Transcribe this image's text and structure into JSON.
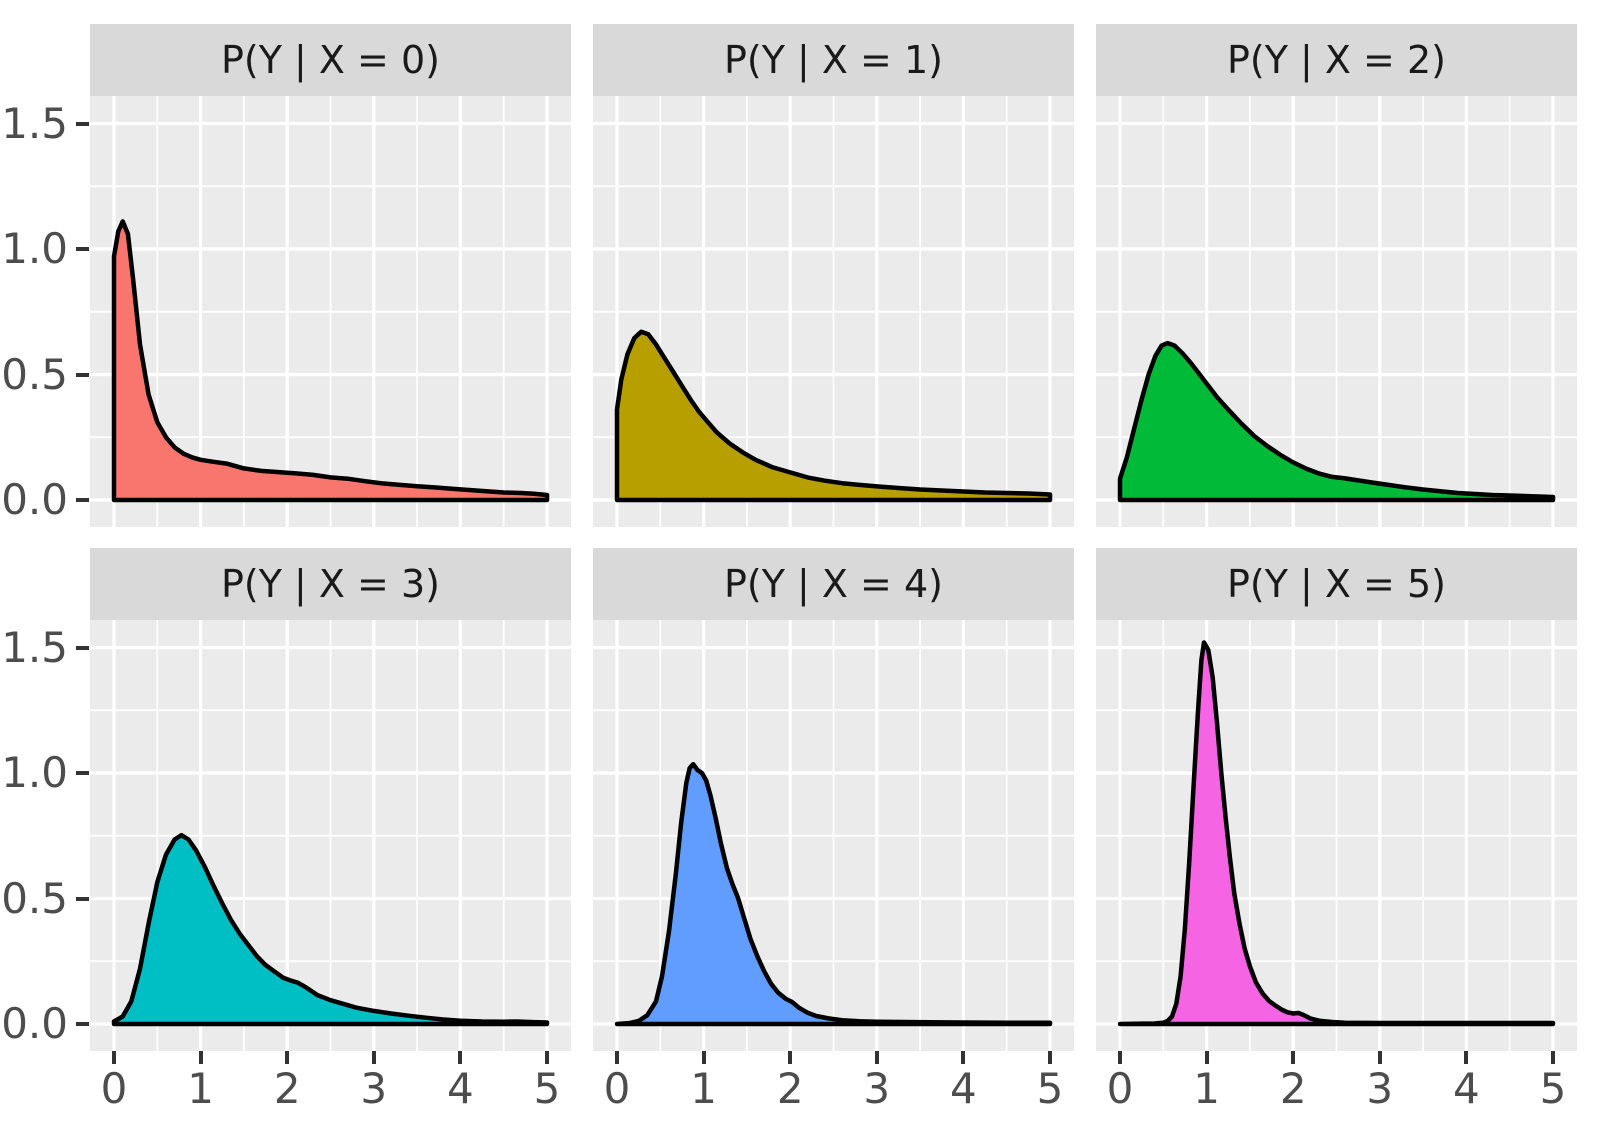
{
  "chart_data": {
    "type": "area",
    "subtype": "faceted-density-plot",
    "facet_layout": {
      "rows": 2,
      "cols": 3
    },
    "xlabel": "",
    "ylabel": "",
    "x_ticks": {
      "labels": [
        "0",
        "1",
        "2",
        "3",
        "4",
        "5"
      ],
      "values": [
        0,
        1,
        2,
        3,
        4,
        5
      ]
    },
    "y_ticks": {
      "labels": [
        "1.5",
        "1.0",
        "0.5",
        "0.0"
      ],
      "values": [
        1.5,
        1.0,
        0.5,
        0.0
      ]
    },
    "xlim_display": [
      -0.25,
      5.25
    ],
    "ylim_display": [
      -0.11,
      1.61
    ],
    "grid": {
      "major_x": [
        0,
        1,
        2,
        3,
        4,
        5
      ],
      "minor_x": [
        0.5,
        1.5,
        2.5,
        3.5,
        4.5
      ],
      "major_y": [
        0,
        0.5,
        1.0,
        1.5
      ],
      "minor_y": [
        0.25,
        0.75,
        1.25
      ]
    },
    "theme": {
      "panel_bg": "#EBEBEB",
      "strip_bg": "#D9D9D9",
      "grid_color": "#FFFFFF",
      "axis_text_color": "#4D4D4D",
      "strip_text_color": "#1A1A1A",
      "outline_color": "#000000"
    },
    "facets": [
      {
        "title": "P(Y | X = 0)",
        "fill": "#F8766D",
        "peak": {
          "x": 0.12,
          "y": 1.1
        },
        "points": [
          [
            0,
            0
          ],
          [
            0,
            0.97
          ],
          [
            0.05,
            1.07
          ],
          [
            0.1,
            1.11
          ],
          [
            0.16,
            1.06
          ],
          [
            0.22,
            0.88
          ],
          [
            0.3,
            0.62
          ],
          [
            0.4,
            0.42
          ],
          [
            0.5,
            0.31
          ],
          [
            0.6,
            0.25
          ],
          [
            0.7,
            0.21
          ],
          [
            0.8,
            0.185
          ],
          [
            0.9,
            0.17
          ],
          [
            1.0,
            0.16
          ],
          [
            1.15,
            0.152
          ],
          [
            1.3,
            0.145
          ],
          [
            1.5,
            0.126
          ],
          [
            1.7,
            0.116
          ],
          [
            1.9,
            0.111
          ],
          [
            2.1,
            0.106
          ],
          [
            2.3,
            0.1
          ],
          [
            2.5,
            0.09
          ],
          [
            2.7,
            0.085
          ],
          [
            2.9,
            0.075
          ],
          [
            3.1,
            0.066
          ],
          [
            3.3,
            0.06
          ],
          [
            3.5,
            0.055
          ],
          [
            3.7,
            0.05
          ],
          [
            3.9,
            0.045
          ],
          [
            4.1,
            0.04
          ],
          [
            4.3,
            0.035
          ],
          [
            4.5,
            0.03
          ],
          [
            4.7,
            0.028
          ],
          [
            4.85,
            0.025
          ],
          [
            5,
            0.02
          ],
          [
            5,
            0
          ]
        ]
      },
      {
        "title": "P(Y | X = 1)",
        "fill": "#B79F00",
        "peak": {
          "x": 0.3,
          "y": 0.67
        },
        "points": [
          [
            0,
            0
          ],
          [
            0,
            0.36
          ],
          [
            0.05,
            0.48
          ],
          [
            0.12,
            0.58
          ],
          [
            0.2,
            0.645
          ],
          [
            0.28,
            0.67
          ],
          [
            0.36,
            0.66
          ],
          [
            0.45,
            0.62
          ],
          [
            0.55,
            0.565
          ],
          [
            0.65,
            0.51
          ],
          [
            0.75,
            0.455
          ],
          [
            0.85,
            0.4
          ],
          [
            0.95,
            0.35
          ],
          [
            1.05,
            0.31
          ],
          [
            1.15,
            0.27
          ],
          [
            1.3,
            0.225
          ],
          [
            1.45,
            0.19
          ],
          [
            1.6,
            0.16
          ],
          [
            1.8,
            0.13
          ],
          [
            2.0,
            0.11
          ],
          [
            2.2,
            0.09
          ],
          [
            2.4,
            0.077
          ],
          [
            2.6,
            0.067
          ],
          [
            2.8,
            0.06
          ],
          [
            3.0,
            0.054
          ],
          [
            3.25,
            0.048
          ],
          [
            3.5,
            0.042
          ],
          [
            3.75,
            0.038
          ],
          [
            4.0,
            0.034
          ],
          [
            4.25,
            0.03
          ],
          [
            4.5,
            0.028
          ],
          [
            4.75,
            0.026
          ],
          [
            5,
            0.022
          ],
          [
            5,
            0
          ]
        ]
      },
      {
        "title": "P(Y | X = 2)",
        "fill": "#00BA38",
        "peak": {
          "x": 0.55,
          "y": 0.62
        },
        "points": [
          [
            0,
            0
          ],
          [
            0,
            0.085
          ],
          [
            0.08,
            0.17
          ],
          [
            0.16,
            0.28
          ],
          [
            0.25,
            0.4
          ],
          [
            0.33,
            0.5
          ],
          [
            0.41,
            0.575
          ],
          [
            0.48,
            0.615
          ],
          [
            0.55,
            0.625
          ],
          [
            0.63,
            0.615
          ],
          [
            0.72,
            0.585
          ],
          [
            0.82,
            0.545
          ],
          [
            0.92,
            0.5
          ],
          [
            1.02,
            0.455
          ],
          [
            1.12,
            0.41
          ],
          [
            1.25,
            0.36
          ],
          [
            1.4,
            0.305
          ],
          [
            1.55,
            0.255
          ],
          [
            1.7,
            0.215
          ],
          [
            1.85,
            0.18
          ],
          [
            2.0,
            0.15
          ],
          [
            2.15,
            0.125
          ],
          [
            2.3,
            0.105
          ],
          [
            2.45,
            0.092
          ],
          [
            2.6,
            0.086
          ],
          [
            2.75,
            0.078
          ],
          [
            2.9,
            0.07
          ],
          [
            3.1,
            0.06
          ],
          [
            3.3,
            0.05
          ],
          [
            3.5,
            0.042
          ],
          [
            3.7,
            0.035
          ],
          [
            3.9,
            0.028
          ],
          [
            4.1,
            0.024
          ],
          [
            4.3,
            0.02
          ],
          [
            4.5,
            0.018
          ],
          [
            4.75,
            0.015
          ],
          [
            5,
            0.012
          ],
          [
            5,
            0
          ]
        ]
      },
      {
        "title": "P(Y | X = 3)",
        "fill": "#00BFC4",
        "peak": {
          "x": 0.78,
          "y": 0.75
        },
        "points": [
          [
            0,
            0
          ],
          [
            0,
            0.01
          ],
          [
            0.1,
            0.03
          ],
          [
            0.2,
            0.09
          ],
          [
            0.3,
            0.22
          ],
          [
            0.4,
            0.4
          ],
          [
            0.5,
            0.565
          ],
          [
            0.6,
            0.675
          ],
          [
            0.7,
            0.735
          ],
          [
            0.78,
            0.752
          ],
          [
            0.86,
            0.735
          ],
          [
            0.95,
            0.69
          ],
          [
            1.05,
            0.625
          ],
          [
            1.15,
            0.55
          ],
          [
            1.25,
            0.48
          ],
          [
            1.35,
            0.415
          ],
          [
            1.45,
            0.36
          ],
          [
            1.55,
            0.315
          ],
          [
            1.65,
            0.27
          ],
          [
            1.75,
            0.235
          ],
          [
            1.85,
            0.21
          ],
          [
            1.95,
            0.185
          ],
          [
            2.05,
            0.172
          ],
          [
            2.12,
            0.165
          ],
          [
            2.22,
            0.145
          ],
          [
            2.35,
            0.115
          ],
          [
            2.5,
            0.095
          ],
          [
            2.65,
            0.08
          ],
          [
            2.8,
            0.065
          ],
          [
            3.0,
            0.052
          ],
          [
            3.2,
            0.042
          ],
          [
            3.4,
            0.033
          ],
          [
            3.6,
            0.025
          ],
          [
            3.8,
            0.018
          ],
          [
            4.0,
            0.013
          ],
          [
            4.25,
            0.01
          ],
          [
            4.5,
            0.009
          ],
          [
            4.65,
            0.01
          ],
          [
            4.8,
            0.008
          ],
          [
            5,
            0.006
          ],
          [
            5,
            0
          ]
        ]
      },
      {
        "title": "P(Y | X = 4)",
        "fill": "#619CFF",
        "peak": {
          "x": 0.87,
          "y": 1.03
        },
        "points": [
          [
            0,
            0
          ],
          [
            0.15,
            0.004
          ],
          [
            0.25,
            0.012
          ],
          [
            0.35,
            0.035
          ],
          [
            0.45,
            0.09
          ],
          [
            0.52,
            0.19
          ],
          [
            0.6,
            0.37
          ],
          [
            0.68,
            0.6
          ],
          [
            0.74,
            0.8
          ],
          [
            0.8,
            0.96
          ],
          [
            0.84,
            1.02
          ],
          [
            0.88,
            1.035
          ],
          [
            0.93,
            1.012
          ],
          [
            0.98,
            1.0
          ],
          [
            1.03,
            0.97
          ],
          [
            1.08,
            0.91
          ],
          [
            1.14,
            0.82
          ],
          [
            1.2,
            0.72
          ],
          [
            1.27,
            0.62
          ],
          [
            1.33,
            0.56
          ],
          [
            1.4,
            0.5
          ],
          [
            1.47,
            0.42
          ],
          [
            1.54,
            0.34
          ],
          [
            1.62,
            0.27
          ],
          [
            1.7,
            0.21
          ],
          [
            1.78,
            0.16
          ],
          [
            1.86,
            0.125
          ],
          [
            1.95,
            0.1
          ],
          [
            2.02,
            0.088
          ],
          [
            2.1,
            0.065
          ],
          [
            2.2,
            0.045
          ],
          [
            2.3,
            0.032
          ],
          [
            2.45,
            0.022
          ],
          [
            2.6,
            0.015
          ],
          [
            2.8,
            0.011
          ],
          [
            3.0,
            0.009
          ],
          [
            3.3,
            0.008
          ],
          [
            3.6,
            0.007
          ],
          [
            4.0,
            0.006
          ],
          [
            4.5,
            0.005
          ],
          [
            5,
            0.005
          ],
          [
            5,
            0
          ]
        ]
      },
      {
        "title": "P(Y | X = 5)",
        "fill": "#F564E3",
        "peak": {
          "x": 0.97,
          "y": 1.52
        },
        "points": [
          [
            0,
            0
          ],
          [
            0.4,
            0.002
          ],
          [
            0.5,
            0.005
          ],
          [
            0.55,
            0.012
          ],
          [
            0.6,
            0.03
          ],
          [
            0.65,
            0.08
          ],
          [
            0.7,
            0.19
          ],
          [
            0.75,
            0.38
          ],
          [
            0.8,
            0.65
          ],
          [
            0.85,
            0.95
          ],
          [
            0.9,
            1.24
          ],
          [
            0.94,
            1.45
          ],
          [
            0.97,
            1.52
          ],
          [
            1.02,
            1.49
          ],
          [
            1.07,
            1.38
          ],
          [
            1.12,
            1.2
          ],
          [
            1.17,
            1.0
          ],
          [
            1.22,
            0.82
          ],
          [
            1.27,
            0.66
          ],
          [
            1.32,
            0.52
          ],
          [
            1.38,
            0.4
          ],
          [
            1.44,
            0.3
          ],
          [
            1.5,
            0.23
          ],
          [
            1.57,
            0.165
          ],
          [
            1.65,
            0.12
          ],
          [
            1.72,
            0.092
          ],
          [
            1.8,
            0.072
          ],
          [
            1.87,
            0.057
          ],
          [
            1.93,
            0.047
          ],
          [
            2.0,
            0.042
          ],
          [
            2.06,
            0.044
          ],
          [
            2.12,
            0.036
          ],
          [
            2.2,
            0.022
          ],
          [
            2.3,
            0.013
          ],
          [
            2.45,
            0.008
          ],
          [
            2.6,
            0.005
          ],
          [
            3.0,
            0.004
          ],
          [
            3.5,
            0.004
          ],
          [
            4.0,
            0.004
          ],
          [
            4.5,
            0.004
          ],
          [
            5,
            0.004
          ],
          [
            5,
            0
          ]
        ]
      }
    ]
  }
}
